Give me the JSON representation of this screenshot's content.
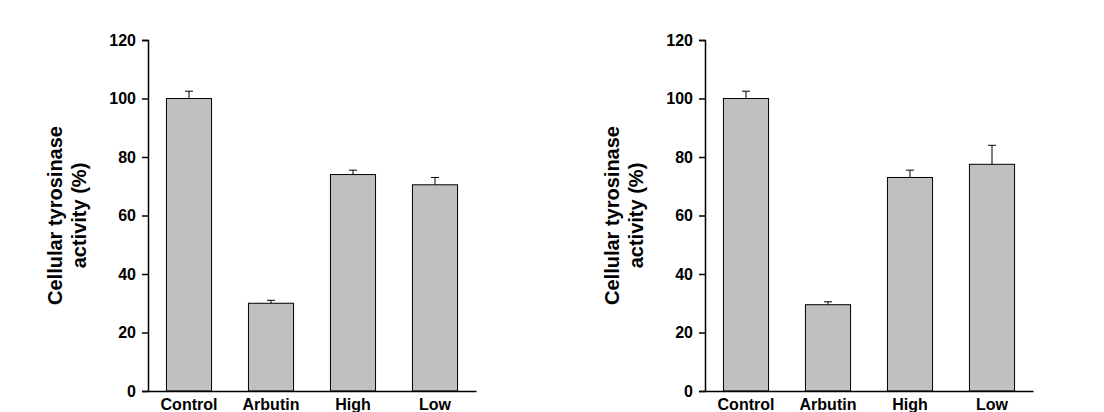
{
  "chart_data": [
    {
      "type": "bar",
      "y_label": [
        "Cellular tyrosinase",
        "activity (%)"
      ],
      "categories": [
        "Control",
        "Arbutin",
        "High",
        "Low"
      ],
      "values": [
        100,
        30,
        74,
        70.5
      ],
      "errors": [
        2.5,
        1,
        1.5,
        2.5
      ],
      "color": "#c0c0c0",
      "ylim": [
        0,
        120
      ],
      "yticks": [
        0,
        20,
        40,
        60,
        80,
        100,
        120
      ]
    },
    {
      "type": "bar",
      "y_label": [
        "Cellular tyrosinase",
        "activity (%)"
      ],
      "categories": [
        "Control",
        "Arbutin",
        "High",
        "Low"
      ],
      "values": [
        100,
        29.5,
        73,
        77.5
      ],
      "errors": [
        2.5,
        1,
        2.5,
        6.5
      ],
      "color": "#c0c0c0",
      "ylim": [
        0,
        120
      ],
      "yticks": [
        0,
        20,
        40,
        60,
        80,
        100,
        120
      ]
    }
  ]
}
